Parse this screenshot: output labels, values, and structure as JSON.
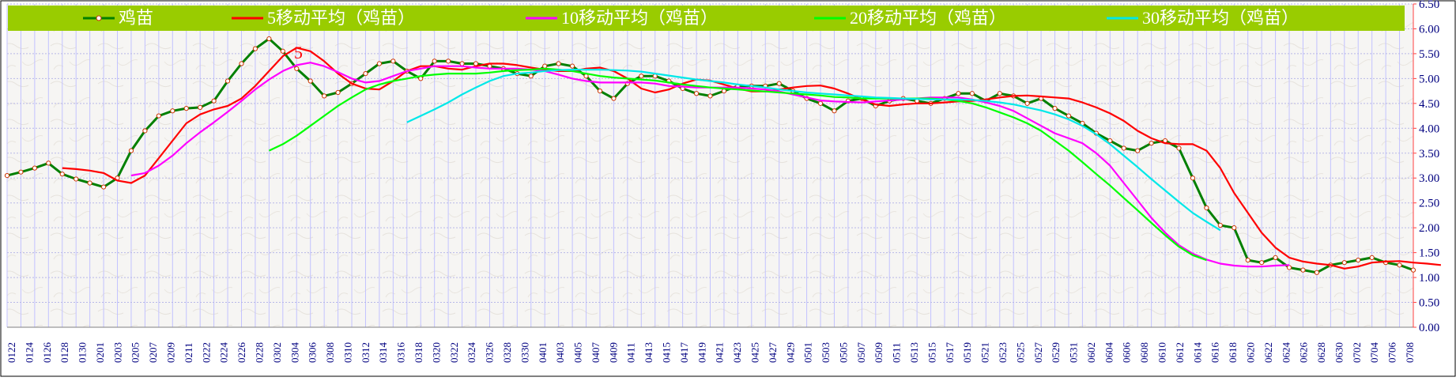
{
  "chart_data": {
    "type": "line",
    "title": "",
    "xlabel": "",
    "ylabel": "",
    "ylim": [
      0,
      6.5
    ],
    "y_ticks": [
      "0.00",
      "0.50",
      "1.00",
      "1.50",
      "2.00",
      "2.50",
      "3.00",
      "3.50",
      "4.00",
      "4.50",
      "5.00",
      "5.50",
      "6.00",
      "6.50"
    ],
    "x_tick_labels": [
      "0122",
      "0124",
      "0126",
      "0128",
      "0130",
      "0201",
      "0203",
      "0205",
      "0207",
      "0209",
      "0211",
      "0222",
      "0224",
      "0226",
      "0228",
      "0302",
      "0304",
      "0306",
      "0308",
      "0310",
      "0312",
      "0314",
      "0316",
      "0318",
      "0320",
      "0322",
      "0324",
      "0326",
      "0328",
      "0330",
      "0401",
      "0403",
      "0405",
      "0407",
      "0409",
      "0411",
      "0413",
      "0415",
      "0417",
      "0419",
      "0421",
      "0423",
      "0425",
      "0427",
      "0429",
      "0501",
      "0503",
      "0505",
      "0507",
      "0509",
      "0511",
      "0513",
      "0515",
      "0517",
      "0519",
      "0521",
      "0523",
      "0525",
      "0527",
      "0529",
      "0531",
      "0602",
      "0604",
      "0606",
      "0608",
      "0610",
      "0612",
      "0614",
      "0616",
      "0618",
      "0620",
      "0622",
      "0624",
      "0626",
      "0628",
      "0630",
      "0702",
      "0704",
      "0706",
      "0708"
    ],
    "grid": true,
    "legend_position": "top",
    "annotation": "5",
    "series": [
      {
        "name": "鸡苗",
        "color": "#008000",
        "marker": true,
        "values": [
          3.05,
          3.12,
          3.2,
          3.3,
          3.08,
          2.98,
          2.9,
          2.82,
          3.0,
          3.55,
          3.95,
          4.25,
          4.35,
          4.4,
          4.42,
          4.55,
          4.95,
          5.3,
          5.6,
          5.8,
          5.55,
          5.2,
          4.95,
          4.65,
          4.72,
          4.9,
          5.1,
          5.3,
          5.35,
          5.15,
          5.0,
          5.35,
          5.35,
          5.3,
          5.3,
          5.25,
          5.2,
          5.1,
          5.05,
          5.25,
          5.3,
          5.25,
          5.05,
          4.75,
          4.6,
          4.9,
          5.05,
          5.05,
          4.95,
          4.8,
          4.7,
          4.65,
          4.75,
          4.85,
          4.85,
          4.85,
          4.9,
          4.75,
          4.6,
          4.5,
          4.35,
          4.55,
          4.6,
          4.45,
          4.55,
          4.6,
          4.55,
          4.5,
          4.6,
          4.7,
          4.7,
          4.55,
          4.7,
          4.65,
          4.5,
          4.6,
          4.4,
          4.25,
          4.1,
          3.9,
          3.75,
          3.6,
          3.55,
          3.7,
          3.75,
          3.6,
          3.0,
          2.4,
          2.05,
          2.0,
          1.35,
          1.3,
          1.4,
          1.2,
          1.15,
          1.1,
          1.25,
          1.3,
          1.35,
          1.4,
          1.3,
          1.25,
          1.15
        ]
      },
      {
        "name": "5移动平均（鸡苗）",
        "color": "#ff0000",
        "marker": false,
        "start_index": 4,
        "values": [
          3.2,
          3.18,
          3.15,
          3.1,
          2.95,
          2.9,
          3.05,
          3.4,
          3.75,
          4.1,
          4.28,
          4.38,
          4.45,
          4.6,
          4.85,
          5.15,
          5.45,
          5.62,
          5.55,
          5.35,
          5.1,
          4.9,
          4.8,
          4.78,
          4.95,
          5.15,
          5.25,
          5.25,
          5.2,
          5.18,
          5.25,
          5.3,
          5.3,
          5.27,
          5.22,
          5.18,
          5.15,
          5.15,
          5.2,
          5.22,
          5.15,
          5.0,
          4.8,
          4.72,
          4.78,
          4.9,
          4.98,
          4.96,
          4.88,
          4.8,
          4.74,
          4.74,
          4.78,
          4.82,
          4.85,
          4.86,
          4.8,
          4.7,
          4.58,
          4.48,
          4.45,
          4.48,
          4.5,
          4.5,
          4.52,
          4.54,
          4.55,
          4.58,
          4.62,
          4.65,
          4.66,
          4.64,
          4.62,
          4.6,
          4.52,
          4.42,
          4.3,
          4.15,
          3.95,
          3.8,
          3.7,
          3.68,
          3.68,
          3.55,
          3.2,
          2.7,
          2.3,
          1.9,
          1.6,
          1.4,
          1.32,
          1.28,
          1.25,
          1.18,
          1.22,
          1.3,
          1.32,
          1.33,
          1.3,
          1.28,
          1.25
        ]
      },
      {
        "name": "10移动平均（鸡苗）",
        "color": "#ff00ff",
        "marker": false,
        "start_index": 9,
        "values": [
          3.05,
          3.1,
          3.25,
          3.45,
          3.7,
          3.92,
          4.12,
          4.33,
          4.55,
          4.78,
          4.98,
          5.15,
          5.27,
          5.32,
          5.25,
          5.13,
          5.0,
          4.92,
          4.95,
          5.05,
          5.15,
          5.2,
          5.25,
          5.25,
          5.25,
          5.22,
          5.2,
          5.2,
          5.2,
          5.18,
          5.15,
          5.08,
          5.0,
          4.95,
          4.92,
          4.92,
          4.92,
          4.92,
          4.9,
          4.85,
          4.84,
          4.82,
          4.82,
          4.82,
          4.82,
          4.8,
          4.78,
          4.74,
          4.68,
          4.62,
          4.56,
          4.54,
          4.53,
          4.52,
          4.54,
          4.56,
          4.58,
          4.6,
          4.62,
          4.62,
          4.62,
          4.58,
          4.52,
          4.45,
          4.35,
          4.2,
          4.05,
          3.9,
          3.8,
          3.7,
          3.5,
          3.25,
          2.9,
          2.55,
          2.2,
          1.9,
          1.65,
          1.48,
          1.36,
          1.28,
          1.24,
          1.22,
          1.22,
          1.24,
          1.25
        ]
      },
      {
        "name": "20移动平均（鸡苗）",
        "color": "#00ff00",
        "marker": false,
        "start_index": 19,
        "values": [
          3.55,
          3.68,
          3.85,
          4.05,
          4.25,
          4.45,
          4.62,
          4.78,
          4.88,
          4.95,
          5.0,
          5.05,
          5.08,
          5.1,
          5.1,
          5.1,
          5.12,
          5.15,
          5.17,
          5.18,
          5.2,
          5.18,
          5.15,
          5.1,
          5.05,
          5.02,
          5.0,
          4.98,
          4.96,
          4.92,
          4.88,
          4.85,
          4.82,
          4.8,
          4.78,
          4.76,
          4.74,
          4.72,
          4.7,
          4.68,
          4.66,
          4.63,
          4.62,
          4.6,
          4.6,
          4.6,
          4.6,
          4.6,
          4.6,
          4.58,
          4.55,
          4.5,
          4.42,
          4.32,
          4.22,
          4.1,
          3.95,
          3.75,
          3.55,
          3.32,
          3.08,
          2.85,
          2.6,
          2.35,
          2.1,
          1.85,
          1.62,
          1.45,
          1.35
        ]
      },
      {
        "name": "30移动平均（鸡苗）",
        "color": "#00e8e8",
        "marker": false,
        "start_index": 29,
        "values": [
          4.12,
          4.25,
          4.38,
          4.52,
          4.68,
          4.82,
          4.95,
          5.05,
          5.1,
          5.12,
          5.15,
          5.17,
          5.18,
          5.18,
          5.18,
          5.17,
          5.16,
          5.14,
          5.1,
          5.06,
          5.02,
          4.98,
          4.95,
          4.92,
          4.88,
          4.85,
          4.82,
          4.78,
          4.75,
          4.72,
          4.7,
          4.68,
          4.66,
          4.64,
          4.62,
          4.61,
          4.6,
          4.59,
          4.58,
          4.58,
          4.58,
          4.57,
          4.55,
          4.52,
          4.48,
          4.42,
          4.36,
          4.28,
          4.18,
          4.05,
          3.88,
          3.68,
          3.45,
          3.22,
          2.98,
          2.75,
          2.52,
          2.3,
          2.12,
          1.95
        ]
      }
    ],
    "colors": {
      "legend_band": "#99cc00",
      "plot_background": "#f6f5f3",
      "vertical_grid": "#c2c2ff",
      "axis_text": "#000080"
    }
  }
}
